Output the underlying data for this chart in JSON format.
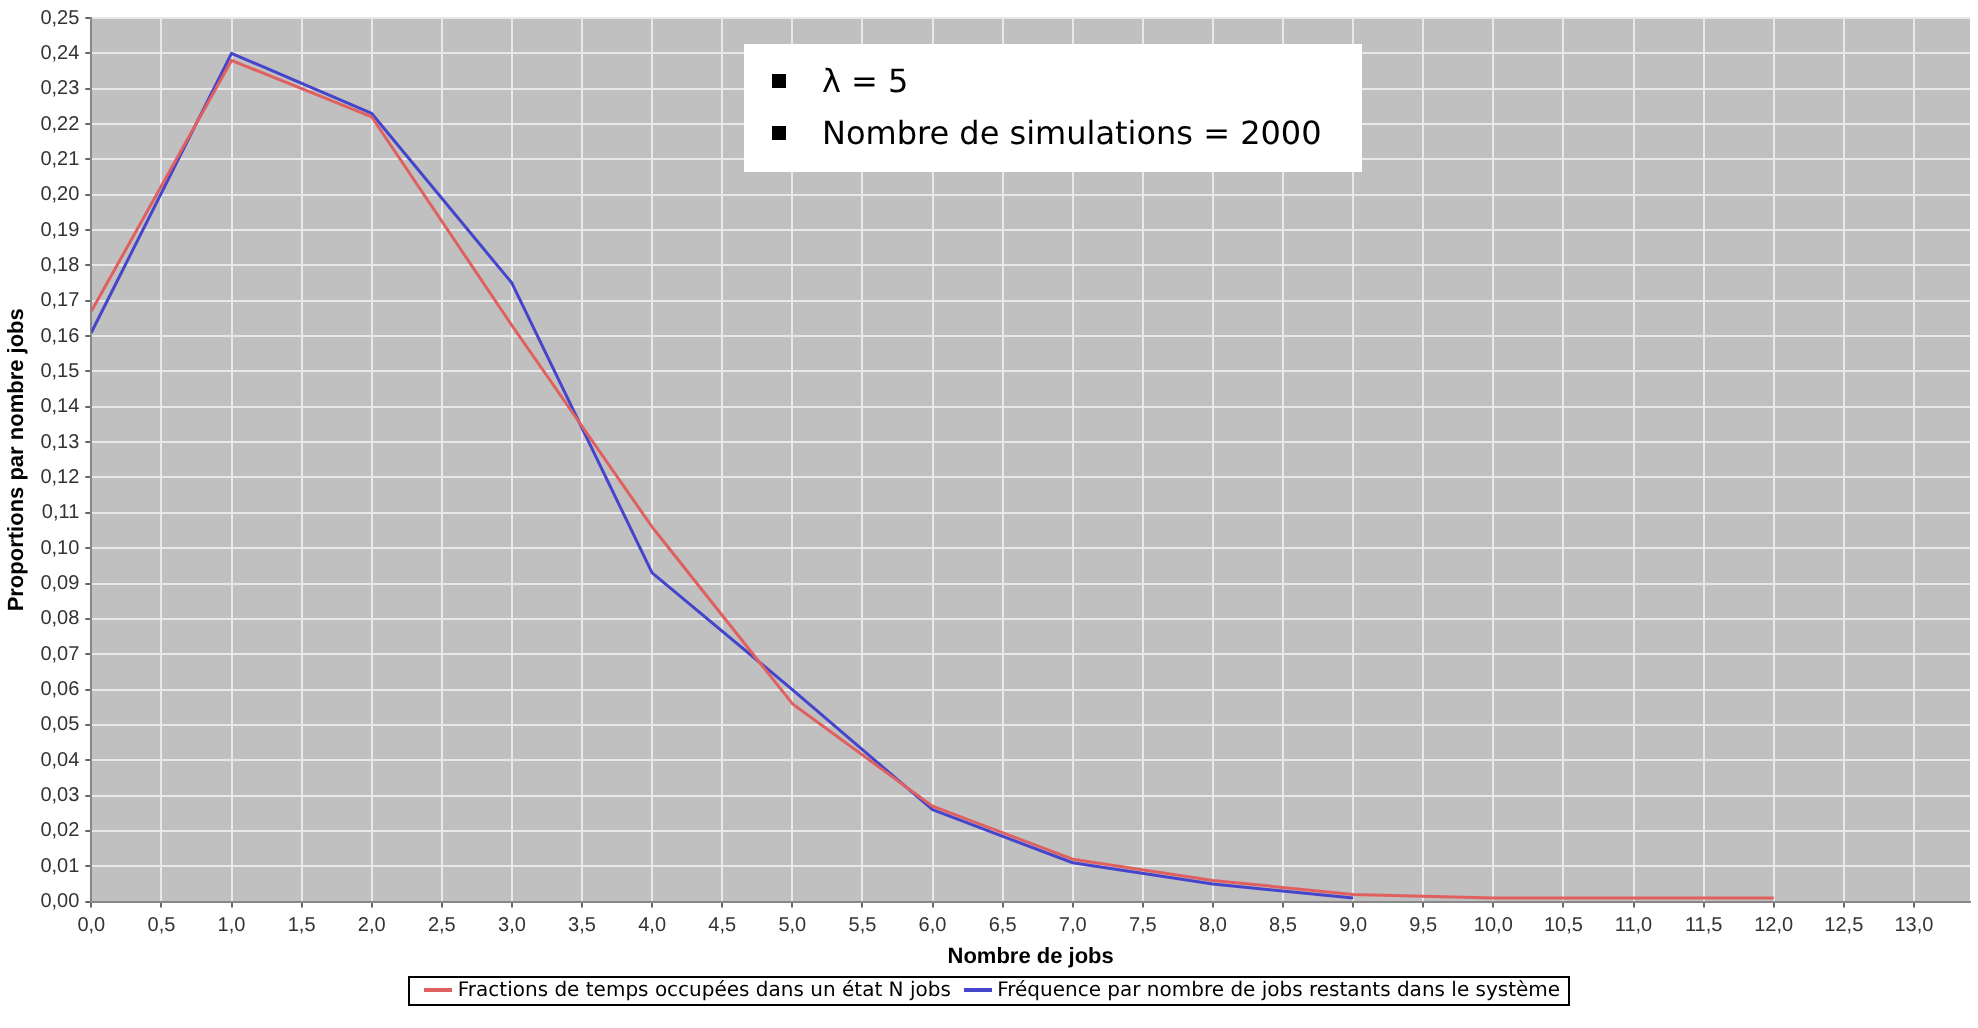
{
  "chart_data": {
    "type": "line",
    "xlabel": "Nombre de jobs",
    "ylabel": "Proportions par nombre jobs",
    "annotations": [
      "λ = 5",
      "Nombre de simulations = 2000"
    ],
    "series": [
      {
        "name": "Fractions de temps occupées dans un état N jobs",
        "color": "#e06060",
        "x": [
          0,
          1,
          2,
          3,
          4,
          5,
          6,
          7,
          8,
          9,
          10,
          11,
          12
        ],
        "values": [
          0.167,
          0.238,
          0.222,
          0.163,
          0.106,
          0.056,
          0.027,
          0.012,
          0.006,
          0.002,
          0.001,
          0.001,
          0.001
        ]
      },
      {
        "name": "Fréquence par nombre de jobs restants dans le système",
        "color": "#4444cc",
        "x": [
          0,
          1,
          2,
          3,
          4,
          5,
          6,
          7,
          8,
          9
        ],
        "values": [
          0.161,
          0.24,
          0.223,
          0.175,
          0.093,
          0.06,
          0.026,
          0.011,
          0.005,
          0.001
        ]
      }
    ],
    "xlim": [
      0,
      13.4
    ],
    "xticks": [
      {
        "value": 0,
        "label": "0,0"
      },
      {
        "value": 0.5,
        "label": "0,5"
      },
      {
        "value": 1,
        "label": "1,0"
      },
      {
        "value": 1.5,
        "label": "1,5"
      },
      {
        "value": 2,
        "label": "2,0"
      },
      {
        "value": 2.5,
        "label": "2,5"
      },
      {
        "value": 3,
        "label": "3,0"
      },
      {
        "value": 3.5,
        "label": "3,5"
      },
      {
        "value": 4,
        "label": "4,0"
      },
      {
        "value": 4.5,
        "label": "4,5"
      },
      {
        "value": 5,
        "label": "5,0"
      },
      {
        "value": 5.5,
        "label": "5,5"
      },
      {
        "value": 6,
        "label": "6,0"
      },
      {
        "value": 6.5,
        "label": "6,5"
      },
      {
        "value": 7,
        "label": "7,0"
      },
      {
        "value": 7.5,
        "label": "7,5"
      },
      {
        "value": 8,
        "label": "8,0"
      },
      {
        "value": 8.5,
        "label": "8,5"
      },
      {
        "value": 9,
        "label": "9,0"
      },
      {
        "value": 9.5,
        "label": "9,5"
      },
      {
        "value": 10,
        "label": "10,0"
      },
      {
        "value": 10.5,
        "label": "10,5"
      },
      {
        "value": 11,
        "label": "11,0"
      },
      {
        "value": 11.5,
        "label": "11,5"
      },
      {
        "value": 12,
        "label": "12,0"
      },
      {
        "value": 12.5,
        "label": "12,5"
      },
      {
        "value": 13,
        "label": "13,0"
      }
    ],
    "ylim": [
      0,
      0.25
    ],
    "yticks": [
      {
        "value": 0,
        "label": "0,00"
      },
      {
        "value": 0.01,
        "label": "0,01"
      },
      {
        "value": 0.02,
        "label": "0,02"
      },
      {
        "value": 0.03,
        "label": "0,03"
      },
      {
        "value": 0.04,
        "label": "0,04"
      },
      {
        "value": 0.05,
        "label": "0,05"
      },
      {
        "value": 0.06,
        "label": "0,06"
      },
      {
        "value": 0.07,
        "label": "0,07"
      },
      {
        "value": 0.08,
        "label": "0,08"
      },
      {
        "value": 0.09,
        "label": "0,09"
      },
      {
        "value": 0.1,
        "label": "0,10"
      },
      {
        "value": 0.11,
        "label": "0,11"
      },
      {
        "value": 0.12,
        "label": "0,12"
      },
      {
        "value": 0.13,
        "label": "0,13"
      },
      {
        "value": 0.14,
        "label": "0,14"
      },
      {
        "value": 0.15,
        "label": "0,15"
      },
      {
        "value": 0.16,
        "label": "0,16"
      },
      {
        "value": 0.17,
        "label": "0,17"
      },
      {
        "value": 0.18,
        "label": "0,18"
      },
      {
        "value": 0.19,
        "label": "0,19"
      },
      {
        "value": 0.2,
        "label": "0,20"
      },
      {
        "value": 0.21,
        "label": "0,21"
      },
      {
        "value": 0.22,
        "label": "0,22"
      },
      {
        "value": 0.23,
        "label": "0,23"
      },
      {
        "value": 0.24,
        "label": "0,24"
      },
      {
        "value": 0.25,
        "label": "0,25"
      }
    ],
    "grid": true,
    "legend": "bottom",
    "marker": "none",
    "line_style": "solid"
  }
}
